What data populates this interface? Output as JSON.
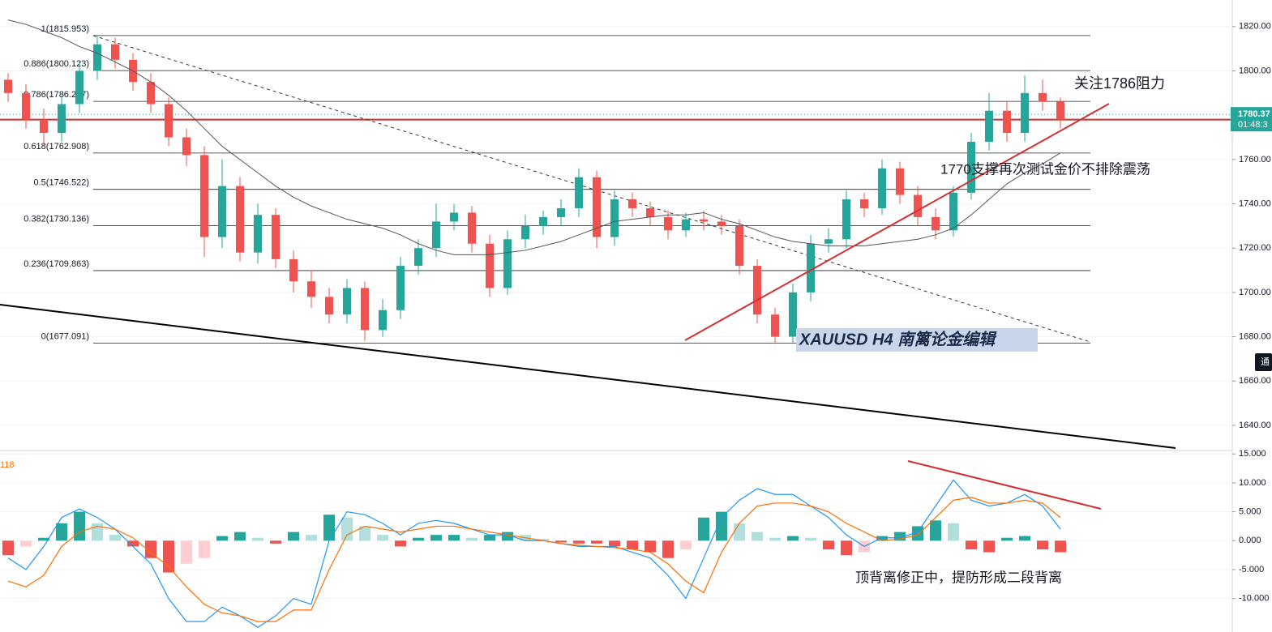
{
  "chart_data": [
    {
      "type": "candlestick",
      "open": [
        1796,
        1790,
        1778,
        1772,
        1785,
        1800,
        1812,
        1805,
        1795,
        1785,
        1770,
        1762,
        1725,
        1748,
        1718,
        1735,
        1715,
        1705,
        1698,
        1690,
        1702,
        1683,
        1692,
        1712,
        1720,
        1732,
        1736,
        1722,
        1702,
        1724,
        1730,
        1734,
        1738,
        1752,
        1725,
        1742,
        1738,
        1734,
        1728,
        1733,
        1732,
        1730,
        1712,
        1690,
        1680,
        1700,
        1722,
        1724,
        1742,
        1738,
        1756,
        1744,
        1734,
        1728,
        1745,
        1768,
        1782,
        1772,
        1790,
        1786
      ],
      "high": [
        1799,
        1794,
        1783,
        1789,
        1804,
        1816,
        1815,
        1808,
        1799,
        1788,
        1774,
        1766,
        1760,
        1752,
        1740,
        1738,
        1719,
        1710,
        1702,
        1706,
        1705,
        1697,
        1716,
        1724,
        1740,
        1740,
        1739,
        1726,
        1728,
        1735,
        1737,
        1742,
        1756,
        1755,
        1746,
        1745,
        1741,
        1737,
        1736,
        1737,
        1735,
        1733,
        1715,
        1693,
        1704,
        1726,
        1729,
        1746,
        1745,
        1760,
        1759,
        1748,
        1738,
        1748,
        1772,
        1790,
        1786,
        1798,
        1796,
        1788
      ],
      "low": [
        1786,
        1774,
        1766,
        1768,
        1781,
        1796,
        1801,
        1791,
        1781,
        1766,
        1757,
        1716,
        1720,
        1714,
        1713,
        1711,
        1700,
        1693,
        1686,
        1686,
        1678,
        1680,
        1688,
        1708,
        1716,
        1728,
        1718,
        1698,
        1699,
        1720,
        1726,
        1730,
        1734,
        1720,
        1721,
        1734,
        1730,
        1724,
        1725,
        1728,
        1726,
        1708,
        1686,
        1677,
        1677,
        1696,
        1718,
        1720,
        1734,
        1735,
        1740,
        1730,
        1724,
        1725,
        1742,
        1764,
        1768,
        1768,
        1782,
        1774
      ],
      "close": [
        1790,
        1778,
        1772,
        1785,
        1800,
        1812,
        1805,
        1795,
        1785,
        1770,
        1762,
        1725,
        1748,
        1718,
        1735,
        1715,
        1705,
        1698,
        1690,
        1702,
        1683,
        1692,
        1712,
        1720,
        1732,
        1736,
        1722,
        1702,
        1724,
        1730,
        1734,
        1738,
        1752,
        1725,
        1742,
        1738,
        1734,
        1728,
        1733,
        1732,
        1730,
        1712,
        1690,
        1680,
        1700,
        1722,
        1724,
        1742,
        1738,
        1756,
        1744,
        1734,
        1728,
        1745,
        1768,
        1782,
        1772,
        1790,
        1786,
        1778
      ],
      "up_color": "#26a69a",
      "down_color": "#ef5350",
      "ma": {
        "color": "#555555",
        "values": [
          1823,
          1821,
          1818,
          1815,
          1811,
          1808,
          1804,
          1800,
          1795,
          1789,
          1782,
          1774,
          1766,
          1760,
          1754,
          1748,
          1743,
          1739,
          1736,
          1733,
          1731,
          1729,
          1726,
          1722,
          1719,
          1717,
          1717,
          1717,
          1718,
          1719,
          1721,
          1723,
          1726,
          1729,
          1732,
          1733,
          1734,
          1735,
          1735,
          1736,
          1733,
          1731,
          1728,
          1725,
          1723,
          1722,
          1721,
          1721,
          1721,
          1722,
          1723,
          1724,
          1726,
          1729,
          1735,
          1742,
          1749,
          1754,
          1758,
          1763
        ]
      },
      "fib_levels": [
        {
          "value": 1815.953,
          "label": "1(1815.953)"
        },
        {
          "value": 1800.123,
          "label": "0.886(1800.123)"
        },
        {
          "value": 1786.237,
          "label": "0.786(1786.237)"
        },
        {
          "value": 1762.908,
          "label": "0.618(1762.908)"
        },
        {
          "value": 1746.522,
          "label": "0.5(1746.522)"
        },
        {
          "value": 1730.136,
          "label": "0.382(1730.136)"
        },
        {
          "value": 1709.863,
          "label": "0.236(1709.863)"
        },
        {
          "value": 1677.091,
          "label": "0(1677.091)"
        }
      ],
      "horizontal_line": {
        "value": 1778,
        "color": "#d32f2f"
      },
      "price_tag": {
        "value": 1780.37,
        "label": "1780.37",
        "countdown": "01:48:3"
      },
      "side_tag": "通",
      "annotations": [
        "关注1786阻力",
        "1770支撑再次测试金价不排除震荡",
        "XAUUSD  H4  南篱论金编辑"
      ],
      "ylim": [
        1629,
        1832
      ],
      "yticks": [
        {
          "value": 1640,
          "label": "1640.00"
        },
        {
          "value": 1660,
          "label": "1660.00"
        },
        {
          "value": 1680,
          "label": "1680.00"
        },
        {
          "value": 1700,
          "label": "1700.00"
        },
        {
          "value": 1720,
          "label": "1720.00"
        },
        {
          "value": 1740,
          "label": "1740.00"
        },
        {
          "value": 1760,
          "label": "1760.00"
        },
        {
          "value": 1780,
          "label": "1780.00"
        },
        {
          "value": 1800,
          "label": "1800.00"
        },
        {
          "value": 1820,
          "label": "1820.00"
        }
      ],
      "grid": true
    },
    {
      "type": "macd",
      "label": "118",
      "histogram": [
        -2.5,
        -1,
        0.5,
        3,
        5,
        3,
        1,
        -1,
        -3,
        -5.5,
        -4,
        -3,
        0.8,
        1.5,
        0.5,
        -0.5,
        1.5,
        1,
        4.5,
        4,
        2.5,
        1,
        -1,
        0.5,
        1,
        1,
        0.5,
        1,
        1.5,
        1,
        0.3,
        -0.3,
        -0.5,
        -0.5,
        -1,
        -1.5,
        -2,
        -3,
        -1.5,
        4,
        5,
        3,
        1.5,
        0.5,
        0.8,
        0.5,
        -1.5,
        -2.5,
        -2,
        0.8,
        1.5,
        2.5,
        3.5,
        3,
        -1.5,
        -2,
        0.5,
        0.8,
        -1.5,
        -2
      ],
      "histogram_colors": [
        "#26a69a",
        "#b2dfdb",
        "#ef5350",
        "#ffcdd2"
      ],
      "macd": {
        "color": "#2196f3",
        "values": [
          -3,
          -5,
          -1,
          4,
          5.5,
          4,
          2,
          -1,
          -4,
          -10,
          -14,
          -14,
          -11.5,
          -13,
          -15,
          -13,
          -10,
          -11,
          0,
          5,
          4.5,
          3,
          1,
          3,
          3.5,
          3,
          2,
          1,
          1,
          0,
          0,
          -0.5,
          -1,
          -1,
          -1,
          -2,
          -3,
          -6,
          -10,
          -3,
          4,
          7,
          9,
          8,
          8,
          6,
          4,
          1,
          -1,
          0.5,
          0.5,
          1.5,
          6,
          10.5,
          7,
          6,
          6.5,
          8,
          6,
          2
        ]
      },
      "signal": {
        "color": "#ff6d00",
        "values": [
          -7,
          -8,
          -6,
          -1,
          1.5,
          2.5,
          2,
          0.5,
          -2,
          -4.5,
          -8,
          -11,
          -12.5,
          -13,
          -14,
          -14,
          -12,
          -12,
          -5,
          1,
          2.5,
          2,
          1.5,
          2,
          2.5,
          2.5,
          2,
          1.5,
          1,
          0.5,
          0,
          -0.5,
          -0.8,
          -1,
          -1.2,
          -1.5,
          -2,
          -4,
          -7,
          -9,
          -2,
          3,
          6,
          6.5,
          6.5,
          6,
          5,
          3,
          1.5,
          0,
          0.3,
          1,
          4,
          7,
          7.5,
          6.5,
          6.5,
          7,
          6.5,
          4
        ]
      },
      "annotations": [
        "顶背离修正中，提防形成二段背离"
      ],
      "ylim": [
        -15.8,
        15.6
      ],
      "yticks": [
        {
          "value": -10,
          "label": "-10.000"
        },
        {
          "value": -5,
          "label": "-5.000"
        },
        {
          "value": 0,
          "label": "0.000"
        },
        {
          "value": 5,
          "label": "5.000"
        },
        {
          "value": 10,
          "label": "10.000"
        },
        {
          "value": 15,
          "label": "15.000"
        }
      ],
      "grid": true
    }
  ]
}
